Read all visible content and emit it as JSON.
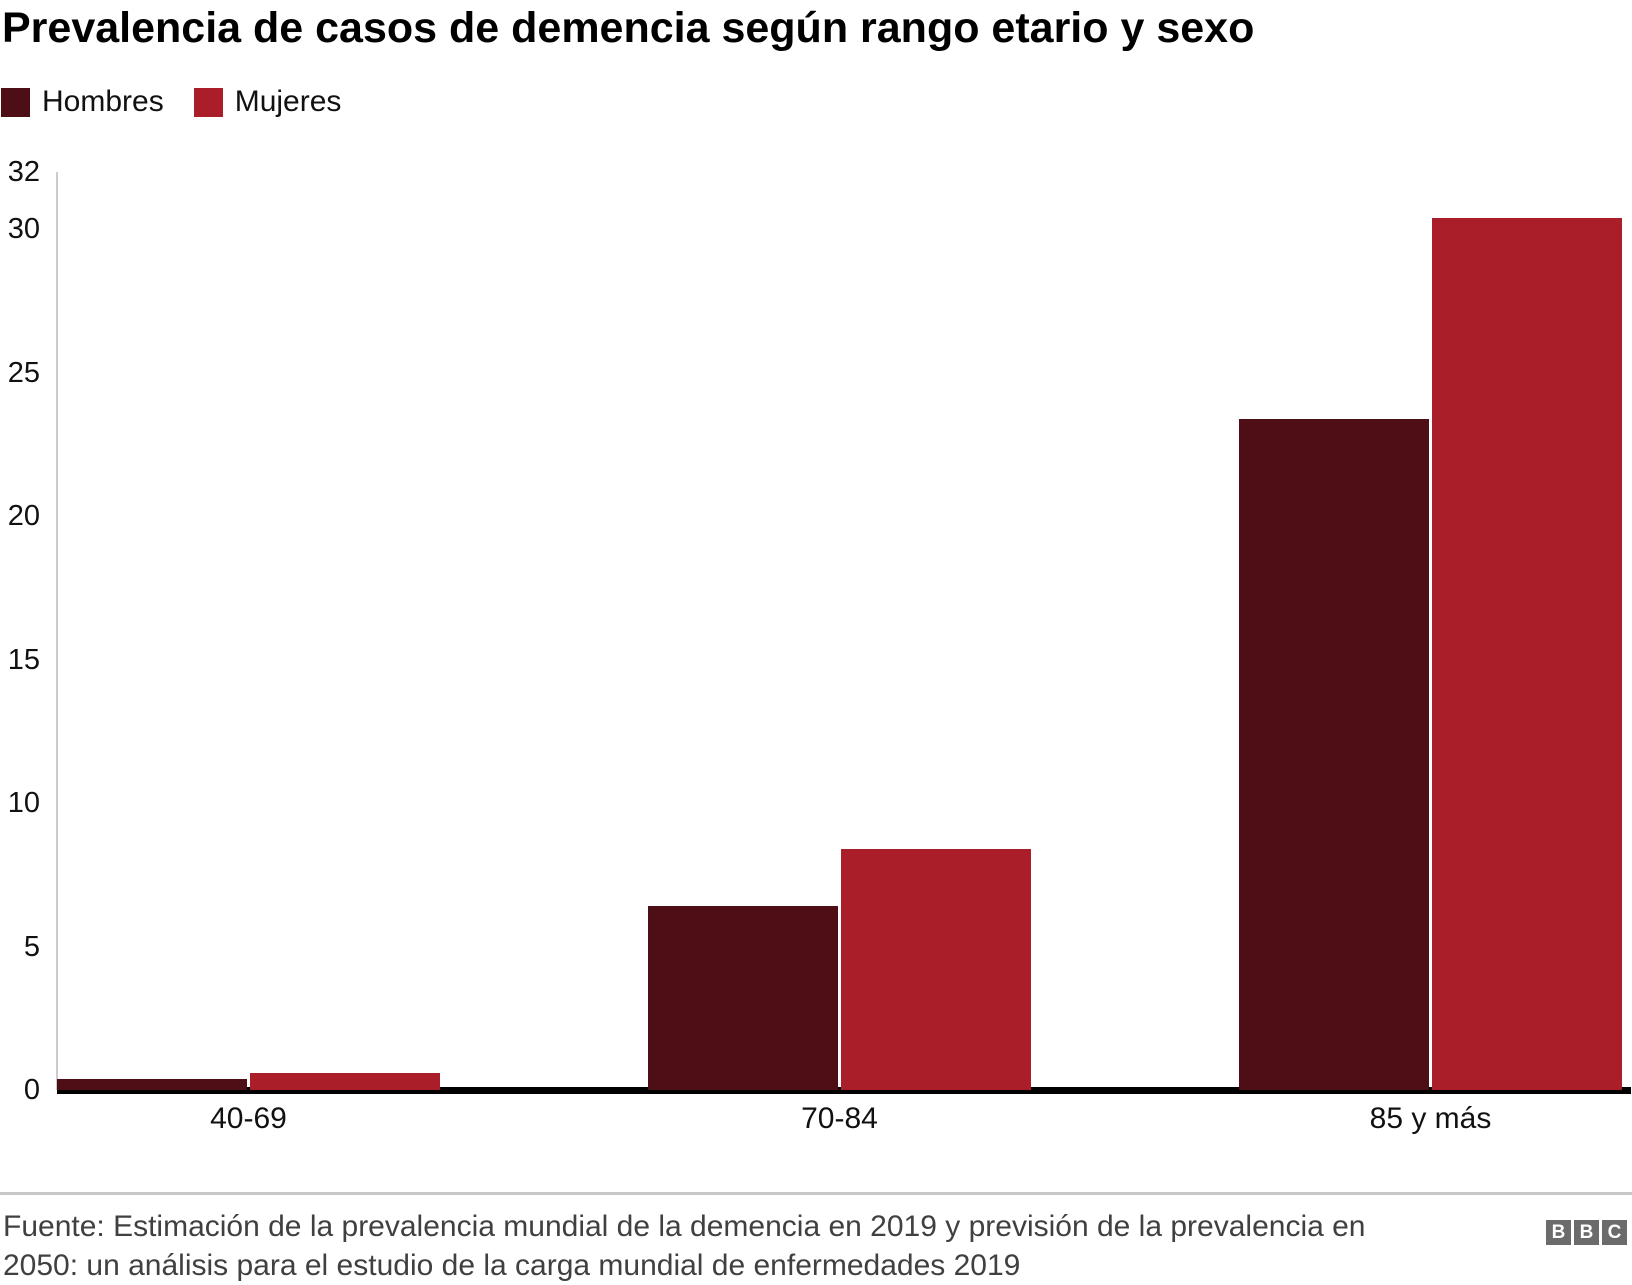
{
  "title": "Prevalencia de casos de demencia según rango etario y sexo",
  "legend": {
    "items": [
      {
        "label": "Hombres",
        "color": "#4d0e15"
      },
      {
        "label": "Mujeres",
        "color": "#a91e28"
      }
    ]
  },
  "chart_data": {
    "type": "bar",
    "title": "Prevalencia de casos de demencia según rango etario y sexo",
    "categories": [
      "40-69",
      "70-84",
      "85 y más"
    ],
    "series": [
      {
        "name": "Hombres",
        "color": "#4d0e15",
        "values": [
          0.4,
          6.4,
          23.4
        ]
      },
      {
        "name": "Mujeres",
        "color": "#a91e28",
        "values": [
          0.6,
          8.4,
          30.4
        ]
      }
    ],
    "xlabel": "",
    "ylabel": "",
    "ylim": [
      0,
      32
    ],
    "yticks": [
      0,
      5,
      10,
      15,
      20,
      25,
      30,
      32
    ],
    "grid": false,
    "legend_position": "top-left"
  },
  "footer": {
    "source_line1": "Fuente: Estimación de la prevalencia mundial de la demencia en 2019 y previsión de la prevalencia en",
    "source_line2": "2050: un análisis para el estudio de la carga mundial de enfermedades 2019",
    "bbc": [
      "B",
      "B",
      "C"
    ]
  }
}
